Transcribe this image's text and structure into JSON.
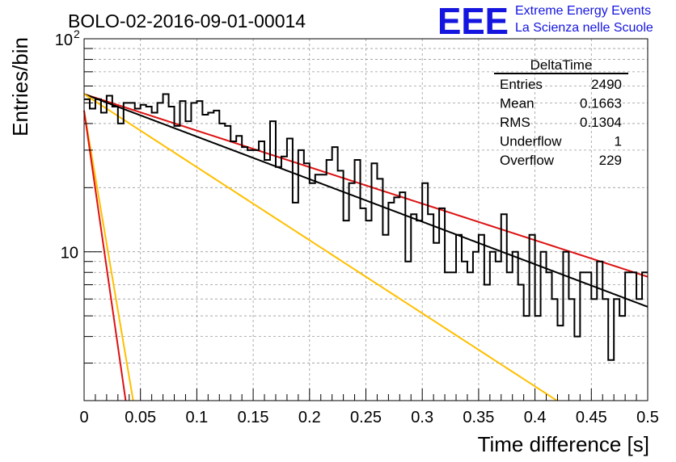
{
  "header": {
    "run_title": "BOLO-02-2016-09-01-00014",
    "logo_letters": "EEE",
    "logo_line1": "Extreme Energy Events",
    "logo_line2": "La Scienza nelle Scuole",
    "logo_color": "#1515e0"
  },
  "stats": {
    "title": "DeltaTime",
    "rows": [
      {
        "label": "Entries",
        "value": "2490"
      },
      {
        "label": "Mean",
        "value": "0.1663"
      },
      {
        "label": "RMS",
        "value": "0.1304"
      },
      {
        "label": "Underflow",
        "value": "1"
      },
      {
        "label": "Overflow",
        "value": "229"
      }
    ]
  },
  "chart_data": {
    "type": "line",
    "title": "BOLO-02-2016-09-01-00014",
    "xlabel": "Time difference [s]",
    "ylabel": "Entries/bin",
    "xlim": [
      0,
      0.5
    ],
    "ylim": [
      2.0,
      100
    ],
    "y_scale": "log",
    "grid": true,
    "x_ticks": [
      "0",
      "0.05",
      "0.1",
      "0.15",
      "0.2",
      "0.25",
      "0.3",
      "0.35",
      "0.4",
      "0.45",
      "0.5"
    ],
    "y_ticks": [
      {
        "value": 10,
        "label": "10"
      },
      {
        "value": 100,
        "label": "10",
        "exponent": "2"
      }
    ],
    "histogram": {
      "bin_width": 0.005,
      "color": "#000000",
      "counts": [
        52,
        47,
        52,
        45,
        54,
        48,
        40,
        50,
        50,
        47,
        49,
        48,
        45,
        50,
        55,
        48,
        39,
        51,
        41,
        50,
        51,
        44,
        45,
        46,
        40,
        39,
        33,
        35,
        31,
        30,
        30,
        33,
        27,
        41,
        25,
        28,
        34,
        17,
        30,
        26,
        21,
        23,
        23,
        27,
        31,
        24,
        14,
        21,
        27,
        16,
        14,
        26,
        22,
        12,
        17,
        18,
        19,
        9,
        15,
        14,
        21,
        15,
        11,
        16,
        8,
        8,
        12,
        9,
        8,
        10,
        12,
        7,
        10,
        9,
        15,
        8,
        10,
        7,
        5,
        12,
        5,
        10,
        8,
        6,
        4.5,
        10,
        6,
        4,
        8,
        8,
        6,
        9,
        6,
        3.1,
        6,
        5,
        8,
        8,
        6,
        8
      ]
    },
    "fits": [
      {
        "color": "#dd1111",
        "y0": 55,
        "slope_per_s": -3.95
      },
      {
        "color": "#000000",
        "y0": 55,
        "slope_per_s": -4.6
      },
      {
        "color": "#ffbf00",
        "y0": 55,
        "slope_per_s": -7.9
      },
      {
        "color": "#ffbf00",
        "y0": 46,
        "slope_per_s": -72
      },
      {
        "color": "#dd1111",
        "y0": 46,
        "slope_per_s": -85
      }
    ]
  }
}
